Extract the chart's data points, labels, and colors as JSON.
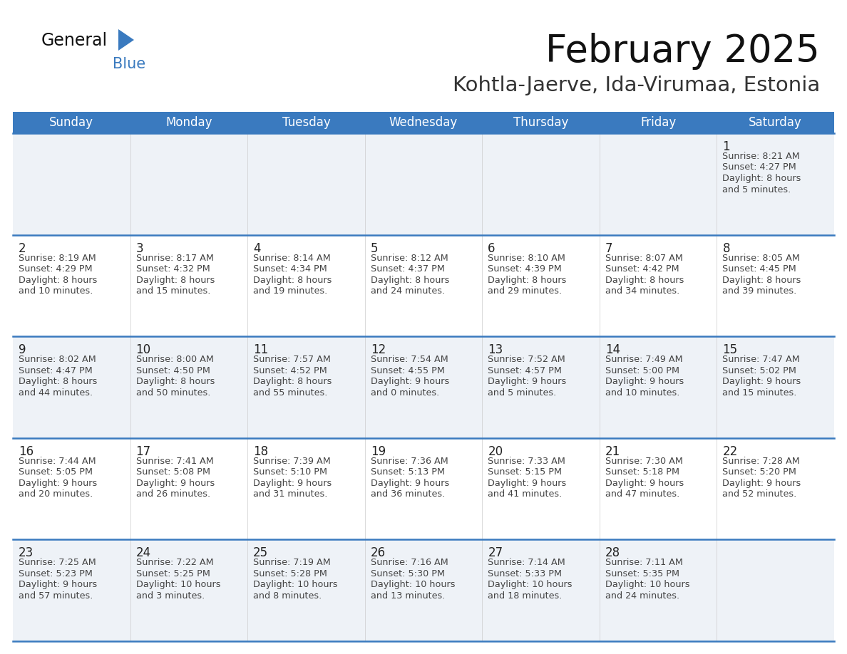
{
  "title": "February 2025",
  "subtitle": "Kohtla-Jaerve, Ida-Virumaa, Estonia",
  "header_bg": "#3a7abf",
  "header_text": "#ffffff",
  "cell_bg_odd": "#eef2f7",
  "cell_bg_even": "#ffffff",
  "border_color": "#3a7abf",
  "day_names": [
    "Sunday",
    "Monday",
    "Tuesday",
    "Wednesday",
    "Thursday",
    "Friday",
    "Saturday"
  ],
  "days": [
    {
      "day": 1,
      "col": 6,
      "row": 0,
      "sunrise": "8:21 AM",
      "sunset": "4:27 PM",
      "daylight": "8 hours and 5 minutes."
    },
    {
      "day": 2,
      "col": 0,
      "row": 1,
      "sunrise": "8:19 AM",
      "sunset": "4:29 PM",
      "daylight": "8 hours and 10 minutes."
    },
    {
      "day": 3,
      "col": 1,
      "row": 1,
      "sunrise": "8:17 AM",
      "sunset": "4:32 PM",
      "daylight": "8 hours and 15 minutes."
    },
    {
      "day": 4,
      "col": 2,
      "row": 1,
      "sunrise": "8:14 AM",
      "sunset": "4:34 PM",
      "daylight": "8 hours and 19 minutes."
    },
    {
      "day": 5,
      "col": 3,
      "row": 1,
      "sunrise": "8:12 AM",
      "sunset": "4:37 PM",
      "daylight": "8 hours and 24 minutes."
    },
    {
      "day": 6,
      "col": 4,
      "row": 1,
      "sunrise": "8:10 AM",
      "sunset": "4:39 PM",
      "daylight": "8 hours and 29 minutes."
    },
    {
      "day": 7,
      "col": 5,
      "row": 1,
      "sunrise": "8:07 AM",
      "sunset": "4:42 PM",
      "daylight": "8 hours and 34 minutes."
    },
    {
      "day": 8,
      "col": 6,
      "row": 1,
      "sunrise": "8:05 AM",
      "sunset": "4:45 PM",
      "daylight": "8 hours and 39 minutes."
    },
    {
      "day": 9,
      "col": 0,
      "row": 2,
      "sunrise": "8:02 AM",
      "sunset": "4:47 PM",
      "daylight": "8 hours and 44 minutes."
    },
    {
      "day": 10,
      "col": 1,
      "row": 2,
      "sunrise": "8:00 AM",
      "sunset": "4:50 PM",
      "daylight": "8 hours and 50 minutes."
    },
    {
      "day": 11,
      "col": 2,
      "row": 2,
      "sunrise": "7:57 AM",
      "sunset": "4:52 PM",
      "daylight": "8 hours and 55 minutes."
    },
    {
      "day": 12,
      "col": 3,
      "row": 2,
      "sunrise": "7:54 AM",
      "sunset": "4:55 PM",
      "daylight": "9 hours and 0 minutes."
    },
    {
      "day": 13,
      "col": 4,
      "row": 2,
      "sunrise": "7:52 AM",
      "sunset": "4:57 PM",
      "daylight": "9 hours and 5 minutes."
    },
    {
      "day": 14,
      "col": 5,
      "row": 2,
      "sunrise": "7:49 AM",
      "sunset": "5:00 PM",
      "daylight": "9 hours and 10 minutes."
    },
    {
      "day": 15,
      "col": 6,
      "row": 2,
      "sunrise": "7:47 AM",
      "sunset": "5:02 PM",
      "daylight": "9 hours and 15 minutes."
    },
    {
      "day": 16,
      "col": 0,
      "row": 3,
      "sunrise": "7:44 AM",
      "sunset": "5:05 PM",
      "daylight": "9 hours and 20 minutes."
    },
    {
      "day": 17,
      "col": 1,
      "row": 3,
      "sunrise": "7:41 AM",
      "sunset": "5:08 PM",
      "daylight": "9 hours and 26 minutes."
    },
    {
      "day": 18,
      "col": 2,
      "row": 3,
      "sunrise": "7:39 AM",
      "sunset": "5:10 PM",
      "daylight": "9 hours and 31 minutes."
    },
    {
      "day": 19,
      "col": 3,
      "row": 3,
      "sunrise": "7:36 AM",
      "sunset": "5:13 PM",
      "daylight": "9 hours and 36 minutes."
    },
    {
      "day": 20,
      "col": 4,
      "row": 3,
      "sunrise": "7:33 AM",
      "sunset": "5:15 PM",
      "daylight": "9 hours and 41 minutes."
    },
    {
      "day": 21,
      "col": 5,
      "row": 3,
      "sunrise": "7:30 AM",
      "sunset": "5:18 PM",
      "daylight": "9 hours and 47 minutes."
    },
    {
      "day": 22,
      "col": 6,
      "row": 3,
      "sunrise": "7:28 AM",
      "sunset": "5:20 PM",
      "daylight": "9 hours and 52 minutes."
    },
    {
      "day": 23,
      "col": 0,
      "row": 4,
      "sunrise": "7:25 AM",
      "sunset": "5:23 PM",
      "daylight": "9 hours and 57 minutes."
    },
    {
      "day": 24,
      "col": 1,
      "row": 4,
      "sunrise": "7:22 AM",
      "sunset": "5:25 PM",
      "daylight": "10 hours and 3 minutes."
    },
    {
      "day": 25,
      "col": 2,
      "row": 4,
      "sunrise": "7:19 AM",
      "sunset": "5:28 PM",
      "daylight": "10 hours and 8 minutes."
    },
    {
      "day": 26,
      "col": 3,
      "row": 4,
      "sunrise": "7:16 AM",
      "sunset": "5:30 PM",
      "daylight": "10 hours and 13 minutes."
    },
    {
      "day": 27,
      "col": 4,
      "row": 4,
      "sunrise": "7:14 AM",
      "sunset": "5:33 PM",
      "daylight": "10 hours and 18 minutes."
    },
    {
      "day": 28,
      "col": 5,
      "row": 4,
      "sunrise": "7:11 AM",
      "sunset": "5:35 PM",
      "daylight": "10 hours and 24 minutes."
    }
  ],
  "num_rows": 5,
  "num_cols": 7,
  "fig_w": 11.88,
  "fig_h": 9.18,
  "dpi": 100,
  "title_fontsize": 38,
  "subtitle_fontsize": 21,
  "dayname_fontsize": 12,
  "day_number_fontsize": 12,
  "day_info_fontsize": 9.2,
  "logo_general_fontsize": 17,
  "logo_blue_fontsize": 15
}
